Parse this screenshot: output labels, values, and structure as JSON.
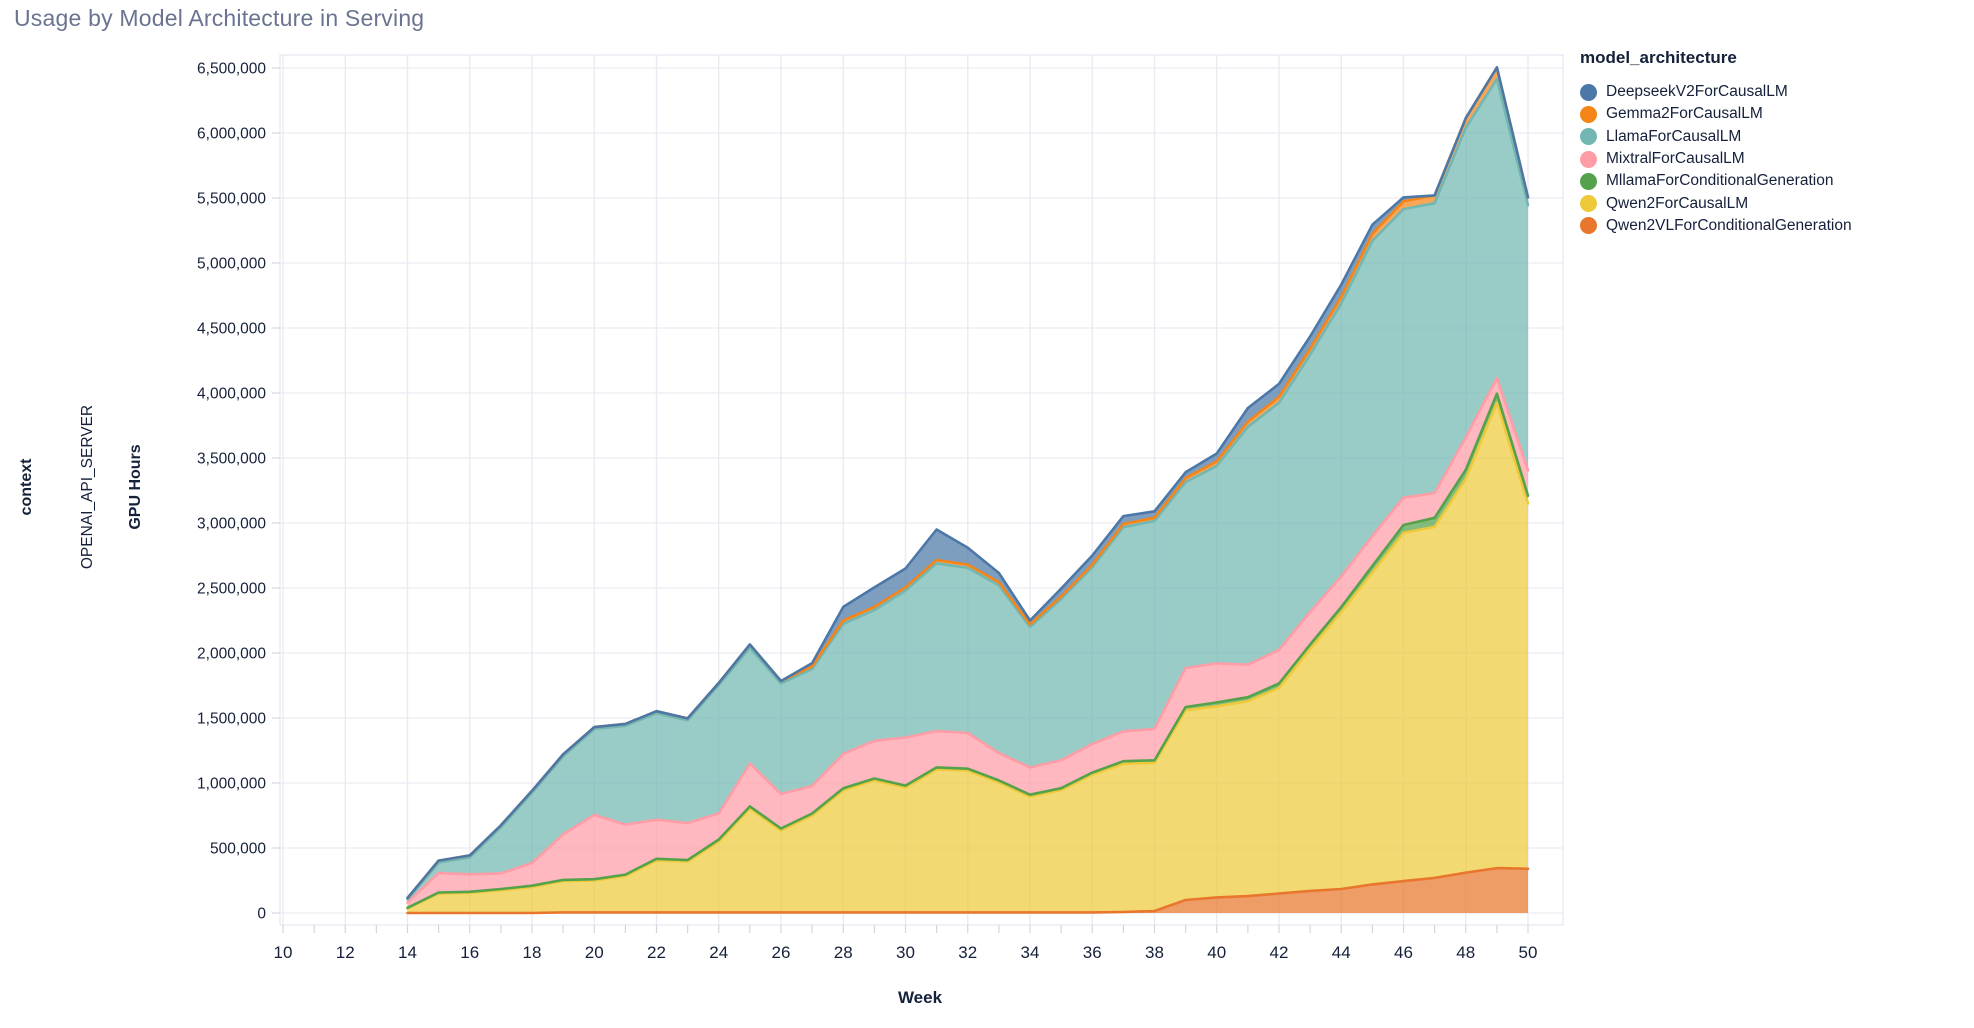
{
  "header": {
    "title": "Usage by Model Architecture in Serving",
    "title_color": "#6a7490"
  },
  "facets": {
    "context_label": "context",
    "server_label": "OPENAI_API_SERVER"
  },
  "y_axis": {
    "title": "GPU Hours",
    "min": 0,
    "max": 6500000,
    "tick_step": 500000
  },
  "x_axis": {
    "title": "Week",
    "min": 10,
    "max": 50,
    "tick_labels": [
      10,
      12,
      14,
      16,
      18,
      20,
      22,
      24,
      26,
      28,
      30,
      32,
      34,
      36,
      38,
      40,
      42,
      44,
      46,
      48,
      50
    ]
  },
  "legend": {
    "title": "model_architecture",
    "items": [
      {
        "label": "DeepseekV2ForCausalLM",
        "color": "#4c78a8"
      },
      {
        "label": "Gemma2ForCausalLM",
        "color": "#f58518"
      },
      {
        "label": "LlamaForCausalLM",
        "color": "#72b7b2"
      },
      {
        "label": "MixtralForCausalLM",
        "color": "#ff9da6"
      },
      {
        "label": "MllamaForConditionalGeneration",
        "color": "#54a24b"
      },
      {
        "label": "Qwen2ForCausalLM",
        "color": "#eeca3b"
      },
      {
        "label": "Qwen2VLForConditionalGeneration",
        "color": "#e8772d"
      }
    ]
  },
  "chart_data": {
    "type": "area",
    "stacked": true,
    "title": "Usage by Model Architecture in Serving",
    "xlabel": "Week",
    "ylabel": "GPU Hours",
    "xlim": [
      10,
      50
    ],
    "ylim": [
      0,
      6500000
    ],
    "grid": true,
    "legend_position": "right",
    "x": [
      14,
      15,
      16,
      17,
      18,
      19,
      20,
      21,
      22,
      23,
      24,
      25,
      26,
      27,
      28,
      29,
      30,
      31,
      32,
      33,
      34,
      35,
      36,
      37,
      38,
      39,
      40,
      41,
      42,
      43,
      44,
      45,
      46,
      47,
      48,
      49,
      50
    ],
    "stack_order_bottom_to_top": [
      "Qwen2VLForConditionalGeneration",
      "Qwen2ForCausalLM",
      "MllamaForConditionalGeneration",
      "MixtralForCausalLM",
      "LlamaForCausalLM",
      "Gemma2ForCausalLM",
      "DeepseekV2ForCausalLM"
    ],
    "series": [
      {
        "name": "Qwen2VLForConditionalGeneration",
        "color": "#e8772d",
        "values": [
          0,
          0,
          0,
          0,
          0,
          5000,
          5000,
          5000,
          5000,
          5000,
          5000,
          5000,
          5000,
          5000,
          5000,
          5000,
          5000,
          5000,
          5000,
          5000,
          5000,
          5000,
          5000,
          8000,
          15000,
          100000,
          120000,
          130000,
          150000,
          170000,
          185000,
          220000,
          245000,
          270000,
          310000,
          345000,
          340000
        ]
      },
      {
        "name": "Qwen2ForCausalLM",
        "color": "#eeca3b",
        "values": [
          35000,
          150000,
          155000,
          175000,
          200000,
          240000,
          245000,
          280000,
          400000,
          390000,
          545000,
          800000,
          630000,
          745000,
          940000,
          1015000,
          960000,
          1100000,
          1090000,
          1000000,
          890000,
          940000,
          1060000,
          1140000,
          1140000,
          1460000,
          1470000,
          1500000,
          1580000,
          1860000,
          2130000,
          2400000,
          2680000,
          2700000,
          3030000,
          3580000,
          2810000
        ]
      },
      {
        "name": "MllamaForConditionalGeneration",
        "color": "#54a24b",
        "values": [
          5000,
          8000,
          8000,
          10000,
          10000,
          10000,
          10000,
          10000,
          12000,
          12000,
          15000,
          15000,
          15000,
          15000,
          15000,
          15000,
          15000,
          15000,
          15000,
          15000,
          15000,
          15000,
          15000,
          20000,
          20000,
          25000,
          30000,
          30000,
          35000,
          35000,
          40000,
          50000,
          60000,
          70000,
          70000,
          70000,
          60000
        ]
      },
      {
        "name": "MixtralForCausalLM",
        "color": "#ff9da6",
        "values": [
          40000,
          150000,
          135000,
          120000,
          175000,
          350000,
          495000,
          385000,
          300000,
          285000,
          200000,
          330000,
          265000,
          212000,
          265000,
          290000,
          370000,
          280000,
          275000,
          210000,
          210000,
          215000,
          220000,
          230000,
          240000,
          300000,
          300000,
          250000,
          260000,
          250000,
          235000,
          230000,
          210000,
          190000,
          250000,
          120000,
          195000
        ]
      },
      {
        "name": "LlamaForCausalLM",
        "color": "#72b7b2",
        "values": [
          25000,
          80000,
          130000,
          355000,
          540000,
          600000,
          660000,
          760000,
          820000,
          790000,
          990000,
          890000,
          850000,
          900000,
          1000000,
          1005000,
          1130000,
          1290000,
          1270000,
          1290000,
          1080000,
          1240000,
          1360000,
          1570000,
          1600000,
          1430000,
          1520000,
          1830000,
          1900000,
          1980000,
          2100000,
          2270000,
          2220000,
          2230000,
          2380000,
          2300000,
          2040000
        ]
      },
      {
        "name": "Gemma2ForCausalLM",
        "color": "#f58518",
        "values": [
          10000,
          15000,
          15000,
          15000,
          15000,
          15000,
          15000,
          15000,
          15000,
          15000,
          15000,
          25000,
          20000,
          20000,
          25000,
          25000,
          25000,
          25000,
          25000,
          25000,
          20000,
          20000,
          20000,
          25000,
          25000,
          30000,
          35000,
          40000,
          45000,
          45000,
          50000,
          55000,
          60000,
          60000,
          75000,
          90000,
          60000
        ]
      },
      {
        "name": "DeepseekV2ForCausalLM",
        "color": "#4c78a8",
        "values": [
          0,
          0,
          0,
          0,
          0,
          0,
          0,
          0,
          0,
          0,
          0,
          0,
          0,
          25000,
          105000,
          150000,
          145000,
          235000,
          130000,
          70000,
          30000,
          60000,
          70000,
          60000,
          50000,
          45000,
          60000,
          105000,
          100000,
          95000,
          95000,
          70000,
          30000,
          0,
          0,
          0,
          0
        ]
      }
    ]
  },
  "style": {
    "grid_color": "#eaeaf2",
    "frame_color": "#e2e2ec",
    "tick_color": "#d4d4e0",
    "fill_opacity": 0.72
  }
}
